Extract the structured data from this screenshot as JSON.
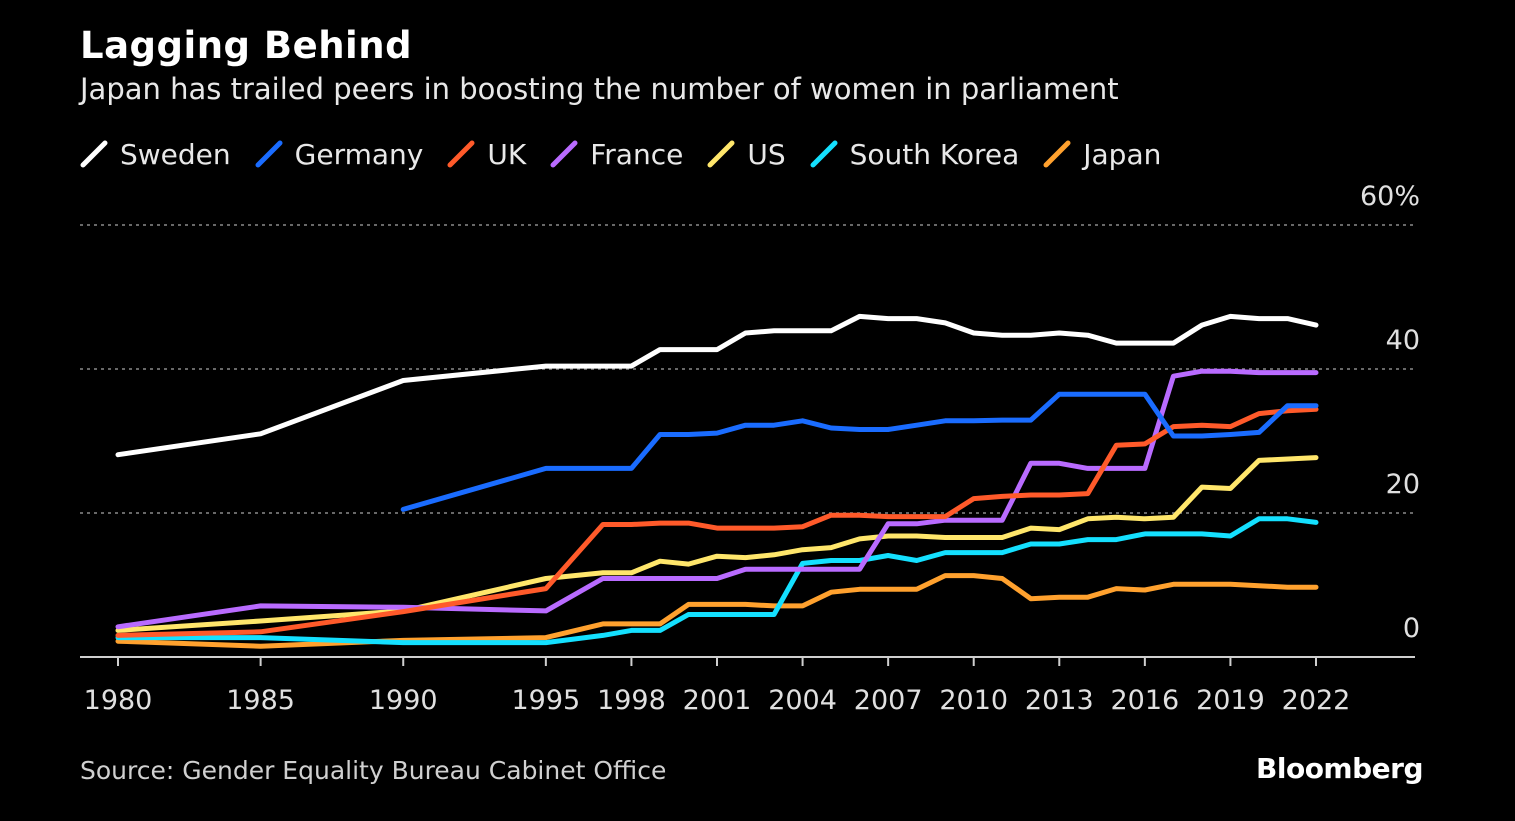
{
  "header": {
    "title": "Lagging Behind",
    "subtitle": "Japan has trailed peers in boosting the number of women in parliament"
  },
  "footer": {
    "source": "Source: Gender Equality Bureau Cabinet Office",
    "brand": "Bloomberg"
  },
  "chart_data": {
    "type": "line",
    "title": "Lagging Behind",
    "subtitle": "Japan has trailed peers in boosting the number of women in parliament",
    "xlabel": "",
    "ylabel": "",
    "xlim": [
      1980,
      2022
    ],
    "ylim": [
      0,
      60
    ],
    "y_ticks": [
      {
        "value": 0,
        "label": "0"
      },
      {
        "value": 20,
        "label": "20"
      },
      {
        "value": 40,
        "label": "40"
      },
      {
        "value": 60,
        "label": "60%"
      }
    ],
    "x_ticks": [
      {
        "value": 1980,
        "label": "1980"
      },
      {
        "value": 1985,
        "label": "1985"
      },
      {
        "value": 1990,
        "label": "1990"
      },
      {
        "value": 1995,
        "label": "1995"
      },
      {
        "value": 1998,
        "label": "1998"
      },
      {
        "value": 2001,
        "label": "2001"
      },
      {
        "value": 2004,
        "label": "2004"
      },
      {
        "value": 2007,
        "label": "2007"
      },
      {
        "value": 2010,
        "label": "2010"
      },
      {
        "value": 2013,
        "label": "2013"
      },
      {
        "value": 2016,
        "label": "2016"
      },
      {
        "value": 2019,
        "label": "2019"
      },
      {
        "value": 2022,
        "label": "2022"
      }
    ],
    "grid": true,
    "legend_position": "top-left",
    "series": [
      {
        "name": "Sweden",
        "color": "#ffffff",
        "points": [
          [
            1980,
            28.1
          ],
          [
            1985,
            31.0
          ],
          [
            1990,
            38.4
          ],
          [
            1995,
            40.4
          ],
          [
            1998,
            40.4
          ],
          [
            1999,
            42.7
          ],
          [
            2001,
            42.7
          ],
          [
            2002,
            45.0
          ],
          [
            2003,
            45.3
          ],
          [
            2005,
            45.3
          ],
          [
            2006,
            47.3
          ],
          [
            2007,
            47.0
          ],
          [
            2008,
            47.0
          ],
          [
            2009,
            46.4
          ],
          [
            2010,
            45.0
          ],
          [
            2011,
            44.7
          ],
          [
            2012,
            44.7
          ],
          [
            2013,
            45.0
          ],
          [
            2014,
            44.7
          ],
          [
            2015,
            43.6
          ],
          [
            2017,
            43.6
          ],
          [
            2018,
            46.1
          ],
          [
            2019,
            47.3
          ],
          [
            2020,
            47.0
          ],
          [
            2021,
            47.0
          ],
          [
            2022,
            46.1
          ]
        ]
      },
      {
        "name": "Germany",
        "color": "#1a6cff",
        "points": [
          [
            1990,
            20.5
          ],
          [
            1995,
            26.2
          ],
          [
            1998,
            26.2
          ],
          [
            1999,
            30.9
          ],
          [
            2000,
            30.9
          ],
          [
            2001,
            31.1
          ],
          [
            2002,
            32.2
          ],
          [
            2003,
            32.2
          ],
          [
            2004,
            32.8
          ],
          [
            2005,
            31.8
          ],
          [
            2006,
            31.6
          ],
          [
            2007,
            31.6
          ],
          [
            2008,
            32.2
          ],
          [
            2009,
            32.8
          ],
          [
            2010,
            32.8
          ],
          [
            2011,
            32.9
          ],
          [
            2012,
            32.9
          ],
          [
            2013,
            36.5
          ],
          [
            2016,
            36.5
          ],
          [
            2017,
            30.7
          ],
          [
            2018,
            30.7
          ],
          [
            2019,
            30.9
          ],
          [
            2020,
            31.2
          ],
          [
            2021,
            34.9
          ],
          [
            2022,
            34.9
          ]
        ]
      },
      {
        "name": "UK",
        "color": "#ff5a2a",
        "points": [
          [
            1980,
            3.0
          ],
          [
            1985,
            3.5
          ],
          [
            1990,
            6.3
          ],
          [
            1995,
            9.5
          ],
          [
            1997,
            18.4
          ],
          [
            1998,
            18.4
          ],
          [
            1999,
            18.6
          ],
          [
            2000,
            18.6
          ],
          [
            2001,
            17.9
          ],
          [
            2002,
            17.9
          ],
          [
            2003,
            17.9
          ],
          [
            2004,
            18.1
          ],
          [
            2005,
            19.7
          ],
          [
            2006,
            19.7
          ],
          [
            2007,
            19.5
          ],
          [
            2008,
            19.5
          ],
          [
            2009,
            19.5
          ],
          [
            2010,
            22.0
          ],
          [
            2011,
            22.3
          ],
          [
            2012,
            22.5
          ],
          [
            2013,
            22.5
          ],
          [
            2014,
            22.7
          ],
          [
            2015,
            29.4
          ],
          [
            2016,
            29.6
          ],
          [
            2017,
            32.0
          ],
          [
            2018,
            32.2
          ],
          [
            2019,
            32.0
          ],
          [
            2020,
            33.8
          ],
          [
            2021,
            34.2
          ],
          [
            2022,
            34.4
          ]
        ]
      },
      {
        "name": "France",
        "color": "#b96bff",
        "points": [
          [
            1980,
            4.2
          ],
          [
            1985,
            7.1
          ],
          [
            1990,
            6.9
          ],
          [
            1995,
            6.4
          ],
          [
            1997,
            10.9
          ],
          [
            1998,
            10.9
          ],
          [
            2001,
            10.9
          ],
          [
            2002,
            12.2
          ],
          [
            2003,
            12.2
          ],
          [
            2006,
            12.2
          ],
          [
            2007,
            18.5
          ],
          [
            2008,
            18.5
          ],
          [
            2009,
            19.0
          ],
          [
            2010,
            19.0
          ],
          [
            2011,
            19.0
          ],
          [
            2012,
            26.9
          ],
          [
            2013,
            26.9
          ],
          [
            2014,
            26.2
          ],
          [
            2016,
            26.2
          ],
          [
            2017,
            39.0
          ],
          [
            2018,
            39.7
          ],
          [
            2019,
            39.7
          ],
          [
            2020,
            39.5
          ],
          [
            2021,
            39.5
          ],
          [
            2022,
            39.5
          ]
        ]
      },
      {
        "name": "US",
        "color": "#ffe66b",
        "points": [
          [
            1980,
            3.7
          ],
          [
            1985,
            5.0
          ],
          [
            1990,
            6.4
          ],
          [
            1995,
            10.9
          ],
          [
            1997,
            11.7
          ],
          [
            1998,
            11.7
          ],
          [
            1999,
            13.3
          ],
          [
            2000,
            12.9
          ],
          [
            2001,
            14.0
          ],
          [
            2002,
            13.8
          ],
          [
            2003,
            14.2
          ],
          [
            2004,
            14.9
          ],
          [
            2005,
            15.2
          ],
          [
            2006,
            16.4
          ],
          [
            2007,
            16.8
          ],
          [
            2008,
            16.8
          ],
          [
            2009,
            16.6
          ],
          [
            2011,
            16.6
          ],
          [
            2012,
            17.9
          ],
          [
            2013,
            17.7
          ],
          [
            2014,
            19.2
          ],
          [
            2015,
            19.4
          ],
          [
            2016,
            19.2
          ],
          [
            2017,
            19.4
          ],
          [
            2018,
            23.6
          ],
          [
            2019,
            23.4
          ],
          [
            2020,
            27.3
          ],
          [
            2022,
            27.7
          ]
        ]
      },
      {
        "name": "South Korea",
        "color": "#14e0ff",
        "points": [
          [
            1980,
            2.7
          ],
          [
            1985,
            2.7
          ],
          [
            1990,
            2.0
          ],
          [
            1995,
            2.0
          ],
          [
            1997,
            3.0
          ],
          [
            1998,
            3.7
          ],
          [
            1999,
            3.7
          ],
          [
            2000,
            5.9
          ],
          [
            2001,
            5.9
          ],
          [
            2003,
            5.9
          ],
          [
            2004,
            13.0
          ],
          [
            2005,
            13.4
          ],
          [
            2006,
            13.4
          ],
          [
            2007,
            14.1
          ],
          [
            2008,
            13.4
          ],
          [
            2009,
            14.5
          ],
          [
            2010,
            14.5
          ],
          [
            2011,
            14.5
          ],
          [
            2012,
            15.7
          ],
          [
            2013,
            15.7
          ],
          [
            2014,
            16.3
          ],
          [
            2015,
            16.3
          ],
          [
            2016,
            17.1
          ],
          [
            2017,
            17.1
          ],
          [
            2018,
            17.1
          ],
          [
            2019,
            16.8
          ],
          [
            2020,
            19.2
          ],
          [
            2021,
            19.2
          ],
          [
            2022,
            18.7
          ]
        ]
      },
      {
        "name": "Japan",
        "color": "#ffa12e",
        "points": [
          [
            1980,
            2.2
          ],
          [
            1985,
            1.5
          ],
          [
            1990,
            2.3
          ],
          [
            1995,
            2.7
          ],
          [
            1997,
            4.6
          ],
          [
            1998,
            4.6
          ],
          [
            1999,
            4.6
          ],
          [
            2000,
            7.3
          ],
          [
            2001,
            7.3
          ],
          [
            2002,
            7.3
          ],
          [
            2003,
            7.1
          ],
          [
            2004,
            7.1
          ],
          [
            2005,
            9.0
          ],
          [
            2006,
            9.4
          ],
          [
            2007,
            9.4
          ],
          [
            2008,
            9.4
          ],
          [
            2009,
            11.3
          ],
          [
            2010,
            11.3
          ],
          [
            2011,
            10.9
          ],
          [
            2012,
            8.1
          ],
          [
            2013,
            8.3
          ],
          [
            2014,
            8.3
          ],
          [
            2015,
            9.5
          ],
          [
            2016,
            9.3
          ],
          [
            2017,
            10.1
          ],
          [
            2018,
            10.1
          ],
          [
            2019,
            10.1
          ],
          [
            2020,
            9.9
          ],
          [
            2021,
            9.7
          ],
          [
            2022,
            9.7
          ]
        ]
      }
    ]
  }
}
